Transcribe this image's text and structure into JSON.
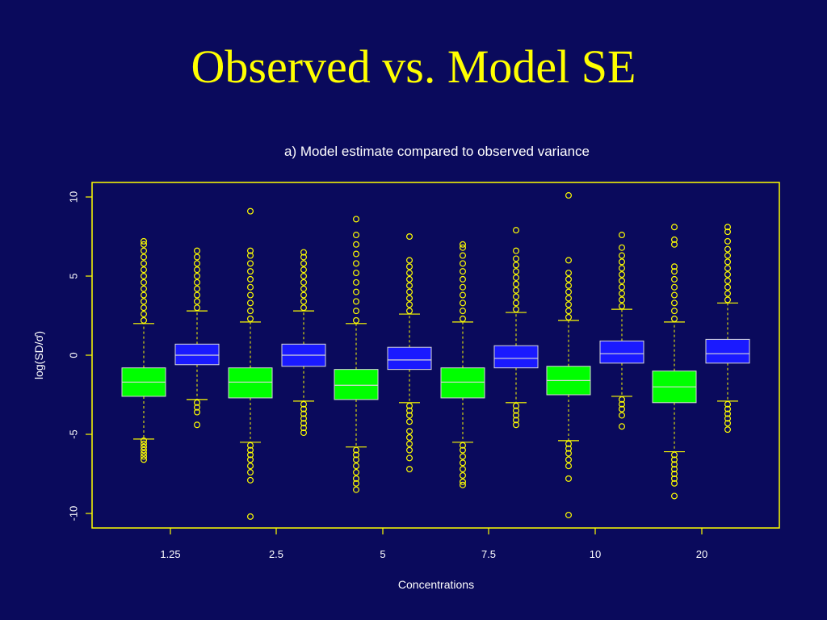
{
  "slide": {
    "title": "Observed vs. Model SE"
  },
  "colors": {
    "background": "#0a0a5c",
    "title": "#ffff00",
    "frame": "#ffff00",
    "outlier": "#ffff00",
    "whisker": "#ffff00",
    "observed_box": "#00ff00",
    "model_box": "#1a1aff",
    "text": "#ffffff"
  },
  "chart_data": {
    "type": "box",
    "title": "a) Model estimate compared to observed variance",
    "xlabel": "Concentrations",
    "ylabel": "log(SD/σ̂)",
    "ylim": [
      -11,
      11
    ],
    "yticks": [
      -10,
      -5,
      0,
      5,
      10
    ],
    "categories": [
      "1.25",
      "2.5",
      "5",
      "7.5",
      "10",
      "20"
    ],
    "series": [
      {
        "color_key": "observed_box",
        "boxes": [
          {
            "q1": -2.6,
            "median": -1.7,
            "q3": -0.8,
            "whisker_low": -5.3,
            "whisker_high": 2.0,
            "outliers_low": [
              -5.4,
              -5.6,
              -5.8,
              -6.0,
              -6.2,
              -6.4,
              -6.6
            ],
            "outliers_high": [
              2.2,
              2.6,
              3.0,
              3.4,
              3.8,
              4.2,
              4.6,
              5.0,
              5.4,
              5.8,
              6.2,
              6.6,
              7.0,
              7.2
            ]
          },
          {
            "q1": -2.7,
            "median": -1.7,
            "q3": -0.8,
            "whisker_low": -5.5,
            "whisker_high": 2.1,
            "outliers_low": [
              -5.7,
              -6.0,
              -6.3,
              -6.6,
              -7.0,
              -7.4,
              -7.9,
              -10.2
            ],
            "outliers_high": [
              2.3,
              2.8,
              3.3,
              3.8,
              4.3,
              4.8,
              5.3,
              5.8,
              6.3,
              6.6,
              9.1
            ]
          },
          {
            "q1": -2.8,
            "median": -1.9,
            "q3": -0.9,
            "whisker_low": -5.8,
            "whisker_high": 2.0,
            "outliers_low": [
              -6.0,
              -6.3,
              -6.6,
              -7.0,
              -7.4,
              -7.8,
              -8.1,
              -8.5
            ],
            "outliers_high": [
              2.2,
              2.8,
              3.4,
              4.0,
              4.6,
              5.2,
              5.8,
              6.4,
              7.0,
              7.6,
              8.6
            ]
          },
          {
            "q1": -2.7,
            "median": -1.7,
            "q3": -0.8,
            "whisker_low": -5.5,
            "whisker_high": 2.1,
            "outliers_low": [
              -5.7,
              -6.0,
              -6.4,
              -6.8,
              -7.2,
              -7.6,
              -8.0,
              -8.2
            ],
            "outliers_high": [
              2.3,
              2.8,
              3.3,
              3.8,
              4.3,
              4.8,
              5.3,
              5.8,
              6.3,
              6.8,
              7.0
            ]
          },
          {
            "q1": -2.5,
            "median": -1.6,
            "q3": -0.7,
            "whisker_low": -5.4,
            "whisker_high": 2.2,
            "outliers_low": [
              -5.6,
              -5.9,
              -6.2,
              -6.6,
              -7.0,
              -7.8,
              -10.1
            ],
            "outliers_high": [
              2.4,
              2.8,
              3.2,
              3.6,
              4.0,
              4.4,
              4.8,
              5.2,
              6.0,
              10.1
            ]
          },
          {
            "q1": -3.0,
            "median": -2.0,
            "q3": -1.0,
            "whisker_low": -6.1,
            "whisker_high": 2.1,
            "outliers_low": [
              -6.3,
              -6.6,
              -6.9,
              -7.2,
              -7.5,
              -7.8,
              -8.1,
              -8.9
            ],
            "outliers_high": [
              2.3,
              2.8,
              3.3,
              3.8,
              4.3,
              4.8,
              5.3,
              5.6,
              7.0,
              7.3,
              8.1
            ]
          }
        ]
      },
      {
        "color_key": "model_box",
        "boxes": [
          {
            "q1": -0.6,
            "median": 0.0,
            "q3": 0.7,
            "whisker_low": -2.8,
            "whisker_high": 2.8,
            "outliers_low": [
              -3.0,
              -3.3,
              -3.6,
              -4.4
            ],
            "outliers_high": [
              3.0,
              3.4,
              3.8,
              4.2,
              4.6,
              5.0,
              5.4,
              5.8,
              6.2,
              6.6
            ]
          },
          {
            "q1": -0.7,
            "median": 0.0,
            "q3": 0.7,
            "whisker_low": -2.9,
            "whisker_high": 2.8,
            "outliers_low": [
              -3.1,
              -3.4,
              -3.7,
              -4.0,
              -4.3,
              -4.6,
              -4.9
            ],
            "outliers_high": [
              3.0,
              3.4,
              3.8,
              4.2,
              4.6,
              5.0,
              5.4,
              5.8,
              6.2,
              6.5
            ]
          },
          {
            "q1": -0.9,
            "median": -0.3,
            "q3": 0.5,
            "whisker_low": -3.0,
            "whisker_high": 2.6,
            "outliers_low": [
              -3.2,
              -3.5,
              -3.8,
              -4.2,
              -4.8,
              -5.2,
              -5.6,
              -6.0,
              -6.5,
              -7.2
            ],
            "outliers_high": [
              2.8,
              3.2,
              3.6,
              4.0,
              4.4,
              4.8,
              5.2,
              5.6,
              6.0,
              7.5
            ]
          },
          {
            "q1": -0.8,
            "median": -0.2,
            "q3": 0.6,
            "whisker_low": -3.0,
            "whisker_high": 2.7,
            "outliers_low": [
              -3.2,
              -3.5,
              -3.8,
              -4.1,
              -4.4
            ],
            "outliers_high": [
              2.9,
              3.3,
              3.7,
              4.1,
              4.5,
              4.9,
              5.3,
              5.7,
              6.1,
              6.6,
              7.9
            ]
          },
          {
            "q1": -0.5,
            "median": 0.1,
            "q3": 0.9,
            "whisker_low": -2.6,
            "whisker_high": 2.9,
            "outliers_low": [
              -2.8,
              -3.1,
              -3.4,
              -3.8,
              -4.5
            ],
            "outliers_high": [
              3.1,
              3.5,
              3.9,
              4.3,
              4.7,
              5.1,
              5.5,
              5.9,
              6.3,
              6.8,
              7.6
            ]
          },
          {
            "q1": -0.5,
            "median": 0.1,
            "q3": 1.0,
            "whisker_low": -2.9,
            "whisker_high": 3.3,
            "outliers_low": [
              -3.1,
              -3.4,
              -3.7,
              -4.0,
              -4.3,
              -4.7
            ],
            "outliers_high": [
              3.5,
              3.9,
              4.3,
              4.7,
              5.1,
              5.5,
              5.9,
              6.3,
              6.7,
              7.2,
              7.8,
              8.1
            ]
          }
        ]
      }
    ]
  }
}
